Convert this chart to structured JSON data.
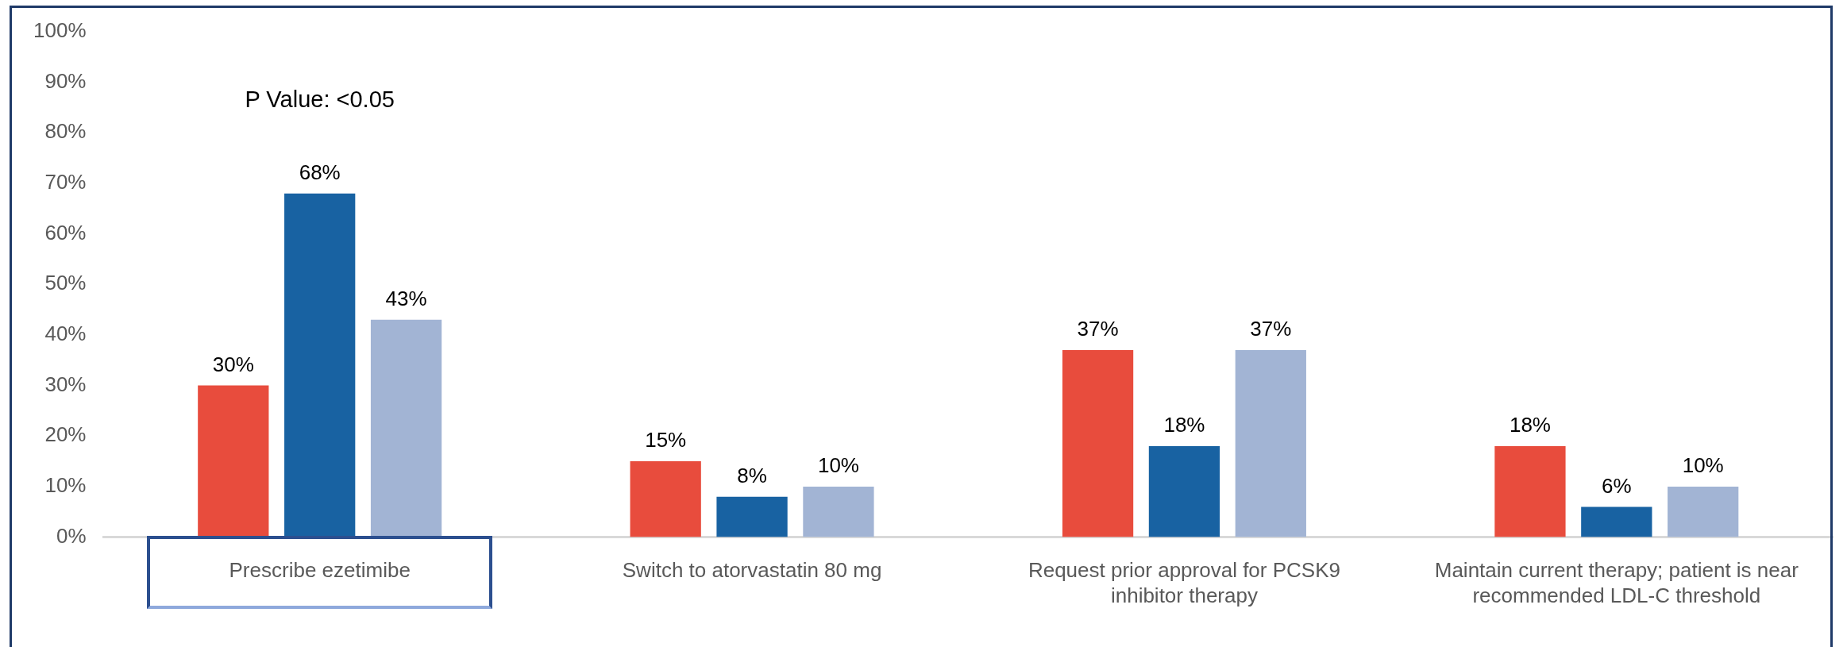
{
  "chart_data": {
    "type": "bar",
    "categories": [
      "Prescribe ezetimibe",
      "Switch to atorvastatin 80 mg",
      "Request prior approval for PCSK9 inhibitor therapy",
      "Maintain current therapy; patient is near recommended LDL-C threshold"
    ],
    "series": [
      {
        "color": "#e84c3d",
        "values": [
          30,
          15,
          37,
          18
        ],
        "value_labels": [
          "30%",
          "15%",
          "37%",
          "18%"
        ]
      },
      {
        "color": "#1862a2",
        "values": [
          68,
          8,
          18,
          6
        ],
        "value_labels": [
          "68%",
          "8%",
          "18%",
          "6%"
        ]
      },
      {
        "color": "#a2b4d4",
        "values": [
          43,
          10,
          37,
          10
        ],
        "value_labels": [
          "43%",
          "10%",
          "37%",
          "10%"
        ]
      }
    ],
    "ylim": [
      0,
      100
    ],
    "yticks": [
      {
        "value": 0,
        "label": "0%"
      },
      {
        "value": 10,
        "label": "10%"
      },
      {
        "value": 20,
        "label": "20%"
      },
      {
        "value": 30,
        "label": "30%"
      },
      {
        "value": 40,
        "label": "40%"
      },
      {
        "value": 50,
        "label": "50%"
      },
      {
        "value": 60,
        "label": "60%"
      },
      {
        "value": 70,
        "label": "70%"
      },
      {
        "value": 80,
        "label": "80%"
      },
      {
        "value": 90,
        "label": "90%"
      },
      {
        "value": 100,
        "label": "100%"
      }
    ],
    "grid": false,
    "legend": false,
    "annotations": [
      "P Value: <0.05"
    ]
  }
}
